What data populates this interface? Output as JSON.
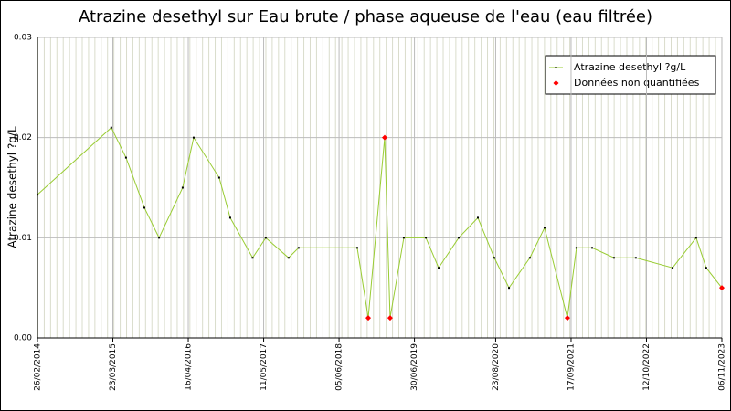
{
  "chart_data": {
    "type": "line",
    "title": "Atrazine desethyl sur Eau brute / phase aqueuse de l'eau (eau filtrée)",
    "y_label": "Atrazine desethyl ?g/L",
    "x": [
      "2014-02-26",
      "2015-03-15",
      "2015-05-30",
      "2015-09-02",
      "2015-11-17",
      "2016-03-18",
      "2016-05-14",
      "2016-09-23",
      "2016-11-19",
      "2017-03-15",
      "2017-05-22",
      "2017-09-17",
      "2017-11-08",
      "2018-09-07",
      "2018-11-03",
      "2019-01-27",
      "2019-02-24",
      "2019-05-06",
      "2019-08-28",
      "2019-11-02",
      "2020-02-14",
      "2020-05-23",
      "2020-08-16",
      "2020-10-31",
      "2021-02-16",
      "2021-05-03",
      "2021-08-29",
      "2021-10-15",
      "2022-01-04",
      "2022-04-27",
      "2022-08-18",
      "2023-02-24",
      "2023-06-26",
      "2023-08-17",
      "2023-11-06"
    ],
    "series": [
      {
        "name": "Atrazine desethyl ?g/L",
        "color": "#99cc33",
        "marker_color": "#000000",
        "values": [
          0.0143,
          0.021,
          0.018,
          0.013,
          0.01,
          0.015,
          0.02,
          0.016,
          0.012,
          0.008,
          0.01,
          0.008,
          0.009,
          0.009,
          0.002,
          0.02,
          0.002,
          0.01,
          0.01,
          0.007,
          0.01,
          0.012,
          0.008,
          0.005,
          0.008,
          0.011,
          0.002,
          0.009,
          0.009,
          0.008,
          0.008,
          0.007,
          0.01,
          0.007,
          0.005
        ]
      },
      {
        "name": "Données non quantifiées",
        "color": "#ff0000",
        "x": [
          "2018-11-03",
          "2019-01-27",
          "2019-02-24",
          "2021-08-29",
          "2023-11-06"
        ],
        "values": [
          0.002,
          0.02,
          0.002,
          0.002,
          0.005
        ]
      }
    ],
    "xlim": [
      "2014-02-26",
      "2023-11-06"
    ],
    "xticks": [
      {
        "value": "2014-02-26",
        "label": "26/02/2014"
      },
      {
        "value": "2015-03-23",
        "label": "23/03/2015"
      },
      {
        "value": "2016-04-16",
        "label": "16/04/2016"
      },
      {
        "value": "2017-05-11",
        "label": "11/05/2017"
      },
      {
        "value": "2018-06-05",
        "label": "05/06/2018"
      },
      {
        "value": "2019-06-30",
        "label": "30/06/2019"
      },
      {
        "value": "2020-08-23",
        "label": "23/08/2020"
      },
      {
        "value": "2021-09-17",
        "label": "17/09/2021"
      },
      {
        "value": "2022-10-12",
        "label": "12/10/2022"
      },
      {
        "value": "2023-11-06",
        "label": "06/11/2023"
      }
    ],
    "ylim": [
      0,
      0.03
    ],
    "yticks": [
      {
        "value": 0,
        "label": "0.00"
      },
      0.01,
      0.02,
      0.03
    ],
    "grid": true,
    "legend": "top-right"
  }
}
